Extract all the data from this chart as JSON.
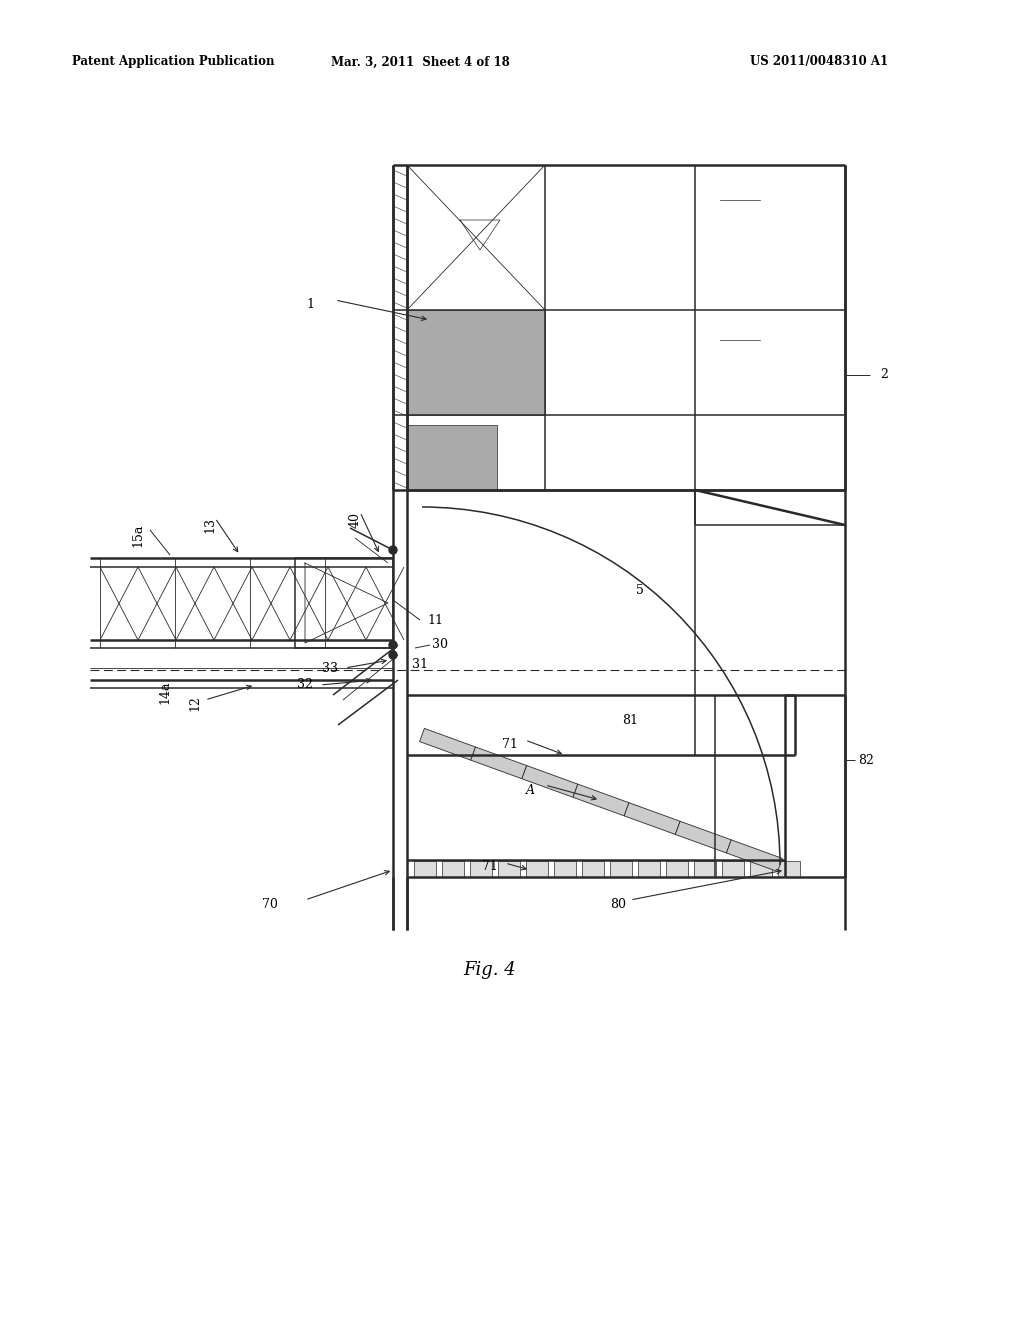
{
  "header_left": "Patent Application Publication",
  "header_center": "Mar. 3, 2011  Sheet 4 of 18",
  "header_right": "US 2011/0048310 A1",
  "fig_label": "Fig. 4",
  "background_color": "#ffffff",
  "line_color": "#2a2a2a",
  "lw_thick": 1.8,
  "lw_main": 1.1,
  "lw_thin": 0.6
}
